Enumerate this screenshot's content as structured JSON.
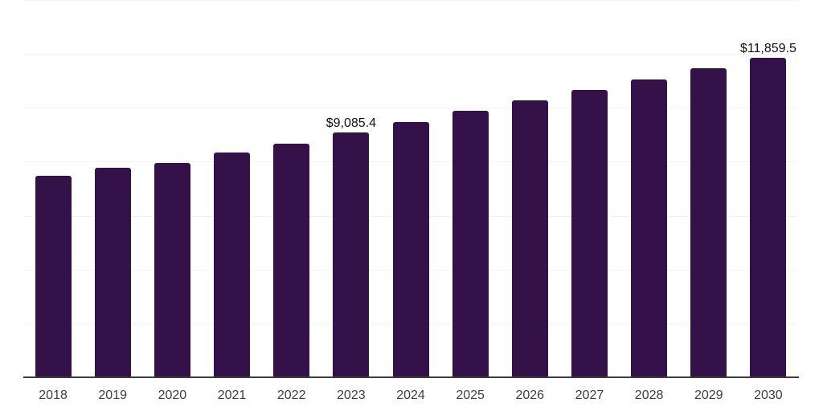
{
  "chart_data": {
    "type": "bar",
    "title": "",
    "xlabel": "",
    "ylabel": "",
    "categories": [
      "2018",
      "2019",
      "2020",
      "2021",
      "2022",
      "2023",
      "2024",
      "2025",
      "2026",
      "2027",
      "2028",
      "2029",
      "2030"
    ],
    "values": [
      7475,
      7775,
      7955,
      8340,
      8670,
      9085.4,
      9480,
      9880,
      10275,
      10670,
      11065,
      11465,
      11859.5
    ],
    "labeled_points": [
      {
        "category": "2023",
        "label": "$9,085.4"
      },
      {
        "category": "2030",
        "label": "$11,859.5"
      }
    ],
    "ylim": [
      0,
      14000
    ],
    "grid_step": 2000,
    "grid": true,
    "legend": false,
    "y_tick_labels_visible": false,
    "colors": {
      "bar": "#341249",
      "gridline": "#f3f3f3",
      "axis_line": "#3c3c3c",
      "tick_label": "#3d3d3d",
      "value_label": "#101010",
      "background": "#ffffff"
    }
  }
}
